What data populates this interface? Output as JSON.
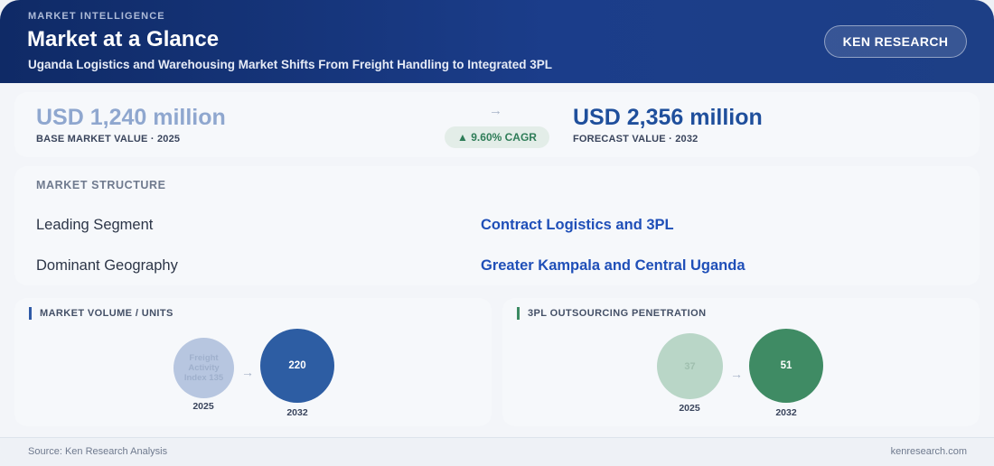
{
  "header": {
    "eyebrow": "MARKET INTELLIGENCE",
    "title": "Market at a Glance",
    "subtitle": "Uganda Logistics and Warehousing Market Shifts From Freight Handling to Integrated 3PL",
    "brand_button": "KEN RESEARCH"
  },
  "values": {
    "base_value": "USD 1,240 million",
    "base_label": "BASE MARKET VALUE · 2025",
    "arrow": "→",
    "cagr": "▲ 9.60% CAGR",
    "forecast_value": "USD 2,356 million",
    "forecast_label": "FORECAST VALUE · 2032"
  },
  "structure": {
    "heading": "MARKET STRUCTURE",
    "rows": [
      {
        "label": "Leading Segment",
        "value": "Contract Logistics and 3PL"
      },
      {
        "label": "Dominant Geography",
        "value": "Greater Kampala and Central Uganda"
      }
    ]
  },
  "volume": {
    "heading": "MARKET VOLUME / UNITS",
    "from_label": "Freight Activity Index 135",
    "from_year": "2025",
    "to_value": "220",
    "to_year": "2032",
    "arrow": "→",
    "colors": {
      "from": "#b7c6e0",
      "to": "#2d5da3"
    }
  },
  "penetration": {
    "heading": "3PL OUTSOURCING PENETRATION",
    "from_value": "37",
    "from_year": "2025",
    "to_value": "51",
    "to_year": "2032",
    "arrow": "→",
    "colors": {
      "from": "#b9d6c7",
      "to": "#3f8b64"
    }
  },
  "footer": {
    "source": "Source: Ken Research Analysis",
    "site": "kenresearch.com"
  }
}
